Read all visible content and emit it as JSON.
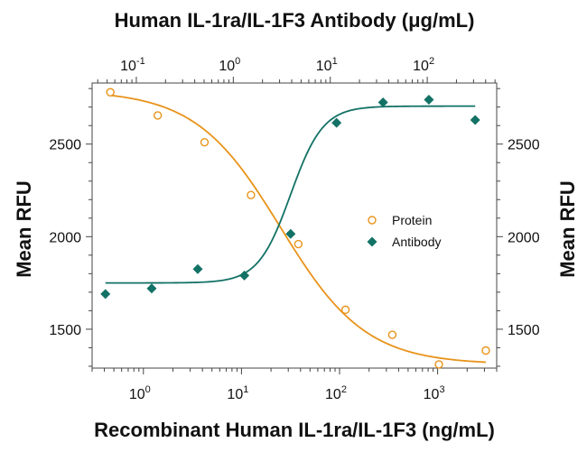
{
  "chart_data": {
    "type": "scatter",
    "title_top": "Human IL-1ra/IL-1F3 Antibody (μg/mL)",
    "xlabel": "Recombinant Human IL-1ra/IL-1F3 (ng/mL)",
    "ylabel_left": "Mean RFU",
    "ylabel_right": "Mean RFU",
    "x_scale": "log",
    "x2_scale": "log",
    "xlim": [
      0.3,
      4000
    ],
    "x2lim": [
      0.035,
      520
    ],
    "ylim": [
      1290,
      2830
    ],
    "x_ticks": [
      {
        "value": 1,
        "base": "10",
        "exp": "0"
      },
      {
        "value": 10,
        "base": "10",
        "exp": "1"
      },
      {
        "value": 100,
        "base": "10",
        "exp": "2"
      },
      {
        "value": 1000,
        "base": "10",
        "exp": "3"
      }
    ],
    "x2_ticks": [
      {
        "value": 0.1,
        "base": "10",
        "exp": "-1"
      },
      {
        "value": 1,
        "base": "10",
        "exp": "0"
      },
      {
        "value": 10,
        "base": "10",
        "exp": "1"
      },
      {
        "value": 100,
        "base": "10",
        "exp": "2"
      }
    ],
    "y_ticks": [
      {
        "value": 1500,
        "label": "1500"
      },
      {
        "value": 2000,
        "label": "2000"
      },
      {
        "value": 2500,
        "label": "2500"
      }
    ],
    "grid": false,
    "legend_position": "center-right",
    "series": [
      {
        "name": "Protein",
        "axis": "bottom",
        "marker": "open-circle",
        "color": "#E8931A",
        "x": [
          0.46,
          1.4,
          4.2,
          12.5,
          38,
          115,
          345,
          1030,
          3100
        ],
        "y": [
          2780,
          2655,
          2510,
          2225,
          1960,
          1605,
          1470,
          1310,
          1385
        ],
        "fit": {
          "top": 2790,
          "bottom": 1310,
          "ec50": 25,
          "hill": 1.0
        }
      },
      {
        "name": "Antibody",
        "axis": "top",
        "marker": "filled-diamond",
        "color": "#137266",
        "x": [
          0.048,
          0.144,
          0.43,
          1.3,
          3.9,
          11.6,
          35,
          104,
          312
        ],
        "y": [
          1690,
          1720,
          1825,
          1790,
          2015,
          2615,
          2725,
          2740,
          2630
        ],
        "fit": {
          "top": 2705,
          "bottom": 1750,
          "ec50": 3.9,
          "hill": 2.6
        }
      }
    ]
  }
}
